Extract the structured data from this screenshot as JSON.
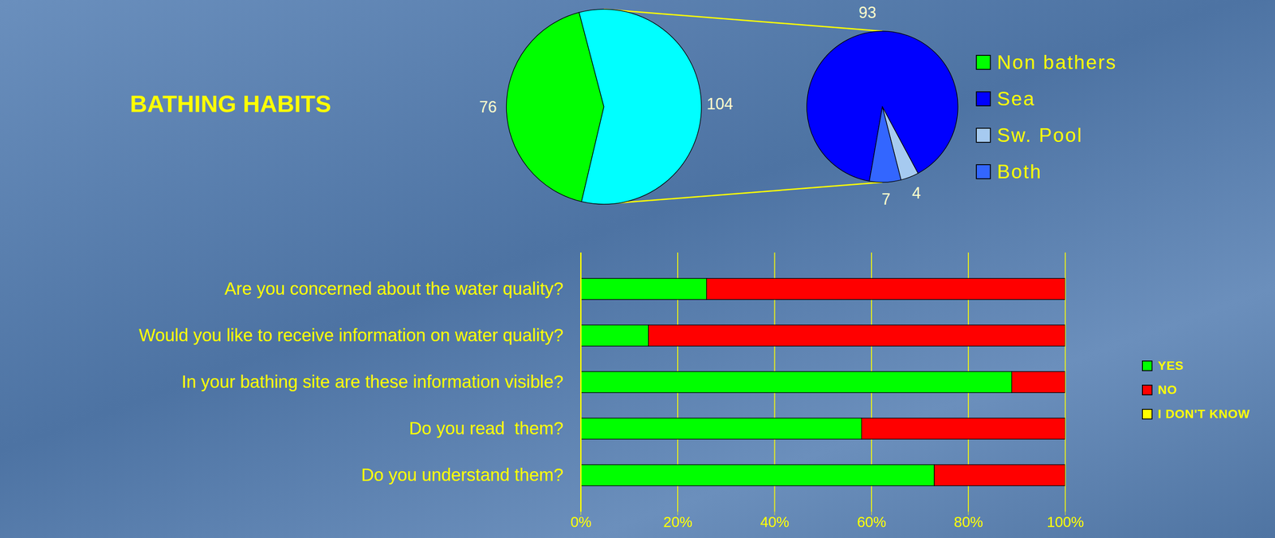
{
  "chart_data": [
    {
      "type": "pie",
      "title": "BATHING HABITS",
      "categories": [
        "Non bathers",
        null
      ],
      "values": [
        76,
        104
      ],
      "colors": [
        "#00ff00",
        "#00ffff"
      ],
      "data_labels": true,
      "legend": "right"
    },
    {
      "type": "pie",
      "categories": [
        "Sea",
        "Sw. Pool",
        "Both"
      ],
      "values": [
        93,
        4,
        7
      ],
      "colors": [
        "#0000ff",
        "#a6caf0",
        "#3366ff"
      ],
      "data_labels": true,
      "legend": "right"
    },
    {
      "type": "bar",
      "orientation": "horizontal",
      "stacked": true,
      "categories": [
        "Are you concerned about the water quality?",
        "Would you like to receive information on water quality?",
        "In your bathing site are these information visible?",
        "Do you read  them?",
        "Do you understand them?"
      ],
      "series": [
        {
          "name": "YES",
          "color": "#00ff00",
          "values": [
            26,
            14,
            89,
            58,
            73
          ]
        },
        {
          "name": "NO",
          "color": "#ff0000",
          "values": [
            74,
            86,
            11,
            42,
            27
          ]
        },
        {
          "name": "I DON'T KNOW",
          "color": "#ffff00",
          "values": [
            0,
            0,
            0,
            0,
            0
          ]
        }
      ],
      "xlim": [
        0,
        100
      ],
      "xticks": [
        {
          "value": 0,
          "label": "0%"
        },
        {
          "value": 20,
          "label": "20%"
        },
        {
          "value": 40,
          "label": "40%"
        },
        {
          "value": 60,
          "label": "60%"
        },
        {
          "value": 80,
          "label": "80%"
        },
        {
          "value": 100,
          "label": "100%"
        }
      ],
      "grid": true,
      "legend": "right"
    }
  ]
}
